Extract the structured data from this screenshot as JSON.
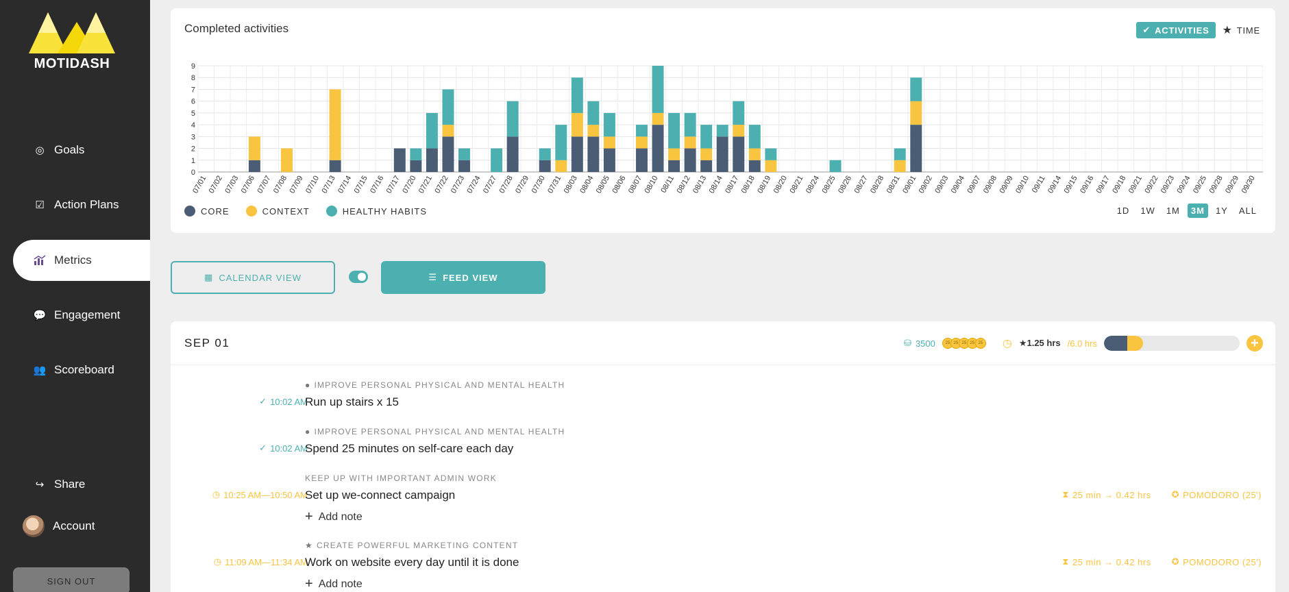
{
  "app": {
    "logo_text": "MOTIDASH"
  },
  "sidebar": {
    "items": [
      {
        "label": "Goals",
        "icon": "target-icon"
      },
      {
        "label": "Action Plans",
        "icon": "checklist-icon"
      },
      {
        "label": "Metrics",
        "icon": "chart-icon"
      },
      {
        "label": "Engagement",
        "icon": "chat-icon"
      },
      {
        "label": "Scoreboard",
        "icon": "people-icon"
      },
      {
        "label": "Share",
        "icon": "share-icon"
      },
      {
        "label": "Account",
        "icon": "avatar"
      }
    ],
    "sign_out": "SIGN OUT"
  },
  "chart_card": {
    "title": "Completed activities",
    "toggle_activities": "ACTIVITIES",
    "toggle_time": "TIME",
    "legend": [
      "CORE",
      "CONTEXT",
      "HEALTHY HABITS"
    ],
    "ranges": [
      "1D",
      "1W",
      "1M",
      "3M",
      "1Y",
      "ALL"
    ],
    "active_range": "3M"
  },
  "chart_data": {
    "type": "bar",
    "stacked": true,
    "ylim": [
      0,
      9
    ],
    "yticks": [
      0,
      1,
      2,
      3,
      4,
      5,
      6,
      7,
      8,
      9
    ],
    "categories": [
      "07/01",
      "07/02",
      "07/03",
      "07/06",
      "07/07",
      "07/08",
      "07/09",
      "07/10",
      "07/13",
      "07/14",
      "07/15",
      "07/16",
      "07/17",
      "07/20",
      "07/21",
      "07/22",
      "07/23",
      "07/24",
      "07/27",
      "07/28",
      "07/29",
      "07/30",
      "07/31",
      "08/03",
      "08/04",
      "08/05",
      "08/06",
      "08/07",
      "08/10",
      "08/11",
      "08/12",
      "08/13",
      "08/14",
      "08/17",
      "08/18",
      "08/19",
      "08/20",
      "08/21",
      "08/24",
      "08/25",
      "08/26",
      "08/27",
      "08/28",
      "08/31",
      "09/01",
      "09/02",
      "09/03",
      "09/04",
      "09/07",
      "09/08",
      "09/09",
      "09/10",
      "09/11",
      "09/14",
      "09/15",
      "09/16",
      "09/17",
      "09/18",
      "09/21",
      "09/22",
      "09/23",
      "09/24",
      "09/25",
      "09/28",
      "09/29",
      "09/30"
    ],
    "series": [
      {
        "name": "CORE",
        "color": "#4a5d75",
        "values": [
          0,
          0,
          0,
          1,
          0,
          0,
          0,
          0,
          1,
          0,
          0,
          0,
          2,
          1,
          2,
          3,
          1,
          0,
          0,
          3,
          0,
          1,
          0,
          3,
          3,
          2,
          0,
          2,
          4,
          1,
          2,
          1,
          3,
          3,
          1,
          0,
          0,
          0,
          0,
          0,
          0,
          0,
          0,
          0,
          4,
          0,
          0,
          0,
          0,
          0,
          0,
          0,
          0,
          0,
          0,
          0,
          0,
          0,
          0,
          0,
          0,
          0,
          0,
          0,
          0,
          0
        ]
      },
      {
        "name": "CONTEXT",
        "color": "#f9c440",
        "values": [
          0,
          0,
          0,
          2,
          0,
          2,
          0,
          0,
          6,
          0,
          0,
          0,
          0,
          0,
          0,
          1,
          0,
          0,
          0,
          0,
          0,
          0,
          1,
          2,
          1,
          1,
          0,
          1,
          1,
          1,
          1,
          1,
          0,
          1,
          1,
          1,
          0,
          0,
          0,
          0,
          0,
          0,
          0,
          1,
          2,
          0,
          0,
          0,
          0,
          0,
          0,
          0,
          0,
          0,
          0,
          0,
          0,
          0,
          0,
          0,
          0,
          0,
          0,
          0,
          0,
          0
        ]
      },
      {
        "name": "HEALTHY HABITS",
        "color": "#4db0b0",
        "values": [
          0,
          0,
          0,
          0,
          0,
          0,
          0,
          0,
          0,
          0,
          0,
          0,
          0,
          1,
          3,
          3,
          1,
          0,
          2,
          3,
          0,
          1,
          3,
          3,
          2,
          2,
          0,
          1,
          4,
          3,
          2,
          2,
          1,
          2,
          2,
          1,
          0,
          0,
          0,
          1,
          0,
          0,
          0,
          1,
          2,
          0,
          0,
          0,
          0,
          0,
          0,
          0,
          0,
          0,
          0,
          0,
          0,
          0,
          0,
          0,
          0,
          0,
          0,
          0,
          0,
          0
        ]
      }
    ]
  },
  "views": {
    "calendar": "CALENDAR VIEW",
    "feed": "FEED VIEW"
  },
  "feed": {
    "date": "SEP 01",
    "points": "3500",
    "coins": [
      "25",
      "25",
      "25",
      "25",
      "25"
    ],
    "hours_done": "1.25 hrs",
    "hours_target": "/6.0 hrs",
    "progress_core": 0.17,
    "progress_context": 0.12,
    "entries": [
      {
        "time": "10:02 AM",
        "goal": "IMPROVE PERSONAL PHYSICAL AND MENTAL HEALTH",
        "title": "Run up stairs x 15"
      },
      {
        "time": "10:02 AM",
        "goal": "IMPROVE PERSONAL PHYSICAL AND MENTAL HEALTH",
        "title": "Spend 25 minutes on self-care each day"
      },
      {
        "time": "10:25 AM—10:50 AM",
        "goal": "KEEP UP WITH IMPORTANT ADMIN WORK",
        "title": "Set up we-connect campaign",
        "add_note": "Add note",
        "duration": "25 min → 0.42 hrs",
        "pomodoro": "POMODORO (25')"
      },
      {
        "time": "11:09 AM—11:34 AM",
        "goal": "CREATE POWERFUL MARKETING CONTENT",
        "title": "Work on website every day until it is done",
        "add_note": "Add note",
        "duration": "25 min → 0.42 hrs",
        "pomodoro": "POMODORO (25')"
      }
    ]
  }
}
